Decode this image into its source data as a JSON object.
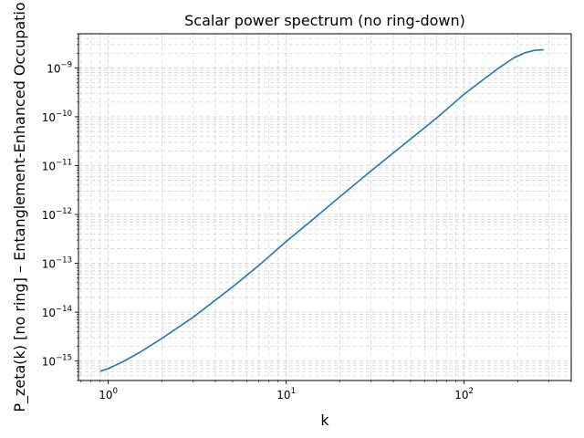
{
  "chart_data": {
    "type": "line",
    "title": "Scalar power spectrum (no ring-down)",
    "xlabel": "k",
    "ylabel": "P_zeta(k) [no ring] – Entanglement-Enhanced Occupatio",
    "x_scale": "log",
    "y_scale": "log",
    "xlim": [
      0.68,
      400
    ],
    "ylim": [
      4e-16,
      5e-09
    ],
    "grid": true,
    "grid_style": "dashed",
    "x_ticks": [
      {
        "value": 1,
        "label": "10^0",
        "base": "10",
        "exp": "0"
      },
      {
        "value": 10,
        "label": "10^1",
        "base": "10",
        "exp": "1"
      },
      {
        "value": 100,
        "label": "10^2",
        "base": "10",
        "exp": "2"
      }
    ],
    "y_ticks": [
      {
        "value": 1e-15,
        "label": "10^-15",
        "base": "10",
        "exp": "−15"
      },
      {
        "value": 1e-14,
        "label": "10^-14",
        "base": "10",
        "exp": "−14"
      },
      {
        "value": 1e-13,
        "label": "10^-13",
        "base": "10",
        "exp": "−13"
      },
      {
        "value": 1e-12,
        "label": "10^-12",
        "base": "10",
        "exp": "−12"
      },
      {
        "value": 1e-11,
        "label": "10^-11",
        "base": "10",
        "exp": "−11"
      },
      {
        "value": 1e-10,
        "label": "10^-10",
        "base": "10",
        "exp": "−10"
      },
      {
        "value": 1e-09,
        "label": "10^-9",
        "base": "10",
        "exp": "−9"
      }
    ],
    "series": [
      {
        "color": "#1f77b4",
        "x": [
          0.9,
          1.0,
          1.2,
          1.5,
          2,
          3,
          5,
          7,
          10,
          15,
          20,
          30,
          50,
          70,
          100,
          130,
          160,
          190,
          220,
          250,
          280
        ],
        "y": [
          6.2e-16,
          7e-16,
          9.6e-16,
          1.5e-15,
          2.9e-15,
          7.9e-15,
          3.3e-14,
          9e-14,
          2.8e-13,
          9.5e-13,
          2.3e-12,
          7.8e-12,
          3.5e-11,
          9.4e-11,
          2.9e-10,
          6e-10,
          1.05e-09,
          1.6e-09,
          2.05e-09,
          2.3e-09,
          2.35e-09
        ]
      }
    ]
  }
}
